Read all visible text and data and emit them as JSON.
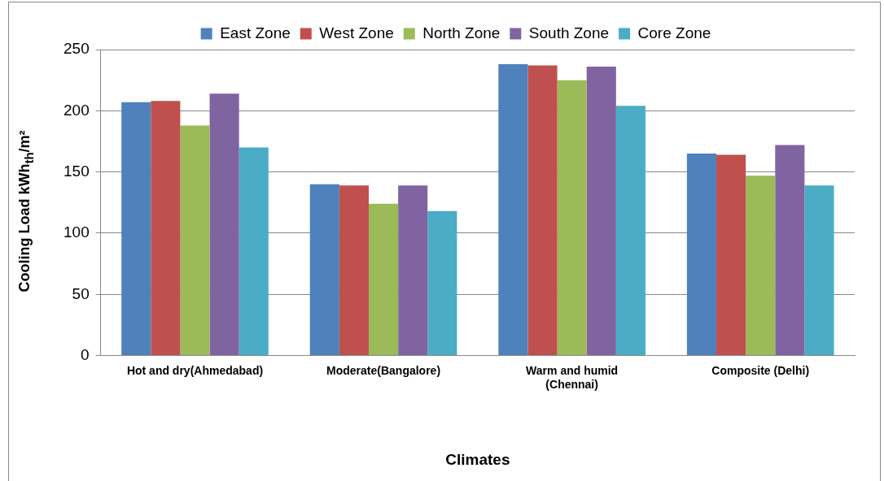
{
  "chart_data": {
    "type": "bar",
    "xlabel": "Climates",
    "ylabel": "Cooling Load kWh$_{th}$/m²",
    "categories": [
      "Hot and dry(Ahmedabad)",
      "Moderate(Bangalore)",
      "Warm and humid (Chennai)",
      "Composite (Delhi)"
    ],
    "series": [
      {
        "name": "East Zone",
        "color": "#4f81bd",
        "values": [
          207,
          140,
          238,
          165
        ]
      },
      {
        "name": "West Zone",
        "color": "#c0504d",
        "values": [
          208,
          139,
          237,
          164
        ]
      },
      {
        "name": "North Zone",
        "color": "#9bbb59",
        "values": [
          188,
          124,
          225,
          147
        ]
      },
      {
        "name": "South Zone",
        "color": "#8064a2",
        "values": [
          214,
          139,
          236,
          172
        ]
      },
      {
        "name": "Core Zone",
        "color": "#4bacc6",
        "values": [
          170,
          118,
          204,
          139
        ]
      }
    ],
    "ylim": [
      0,
      250
    ],
    "yticks": [
      0,
      50,
      100,
      150,
      200,
      250
    ],
    "grid": "y",
    "legend": "top"
  }
}
